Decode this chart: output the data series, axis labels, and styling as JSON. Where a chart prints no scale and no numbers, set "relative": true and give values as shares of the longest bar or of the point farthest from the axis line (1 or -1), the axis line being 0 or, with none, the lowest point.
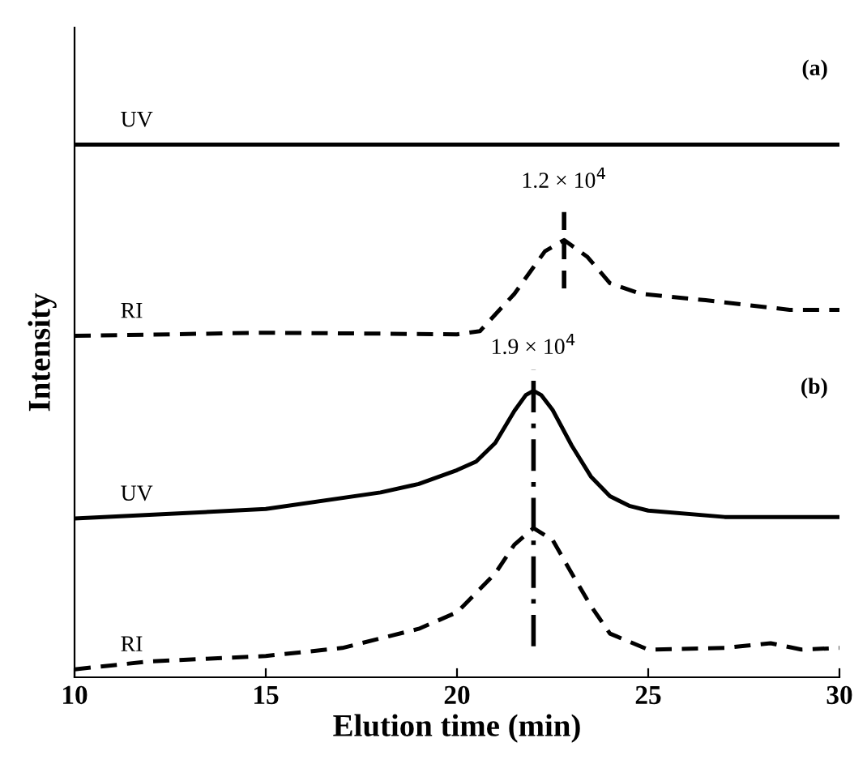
{
  "chart_data": {
    "type": "line",
    "relative": true,
    "xlabel": "Elution time (min)",
    "ylabel": "Intensity",
    "xlim": [
      10,
      30
    ],
    "xticks": [
      10,
      15,
      20,
      25,
      30
    ],
    "tick_labels": "x",
    "grid": false,
    "legend": false,
    "marker": "none",
    "series": [
      {
        "name": "UV",
        "color": "#000000",
        "line_style": "solid",
        "x": [
          10,
          30
        ],
        "values": [
          1,
          1
        ]
      },
      {
        "name": "RI",
        "color": "#000000",
        "line_style": "dashed",
        "x": [
          10,
          15,
          20,
          20.6,
          21.5,
          22.3,
          22.8,
          23.4,
          24,
          24.8,
          26.5,
          28.7,
          30
        ],
        "values": [
          0.641,
          0.647,
          0.644,
          0.65,
          0.72,
          0.8,
          0.821,
          0.79,
          0.74,
          0.72,
          0.708,
          0.69,
          0.69
        ]
      },
      {
        "name": "UV",
        "color": "#000000",
        "line_style": "solid",
        "x": [
          10,
          15,
          18,
          19,
          20,
          20.5,
          21,
          21.5,
          21.8,
          22,
          22.2,
          22.5,
          23,
          23.5,
          24,
          24.5,
          25,
          27,
          30
        ],
        "values": [
          0.298,
          0.316,
          0.347,
          0.363,
          0.389,
          0.405,
          0.44,
          0.5,
          0.53,
          0.538,
          0.53,
          0.502,
          0.435,
          0.377,
          0.34,
          0.322,
          0.313,
          0.301,
          0.301
        ]
      },
      {
        "name": "RI",
        "color": "#000000",
        "line_style": "dashed",
        "x": [
          10,
          12,
          15,
          17,
          19,
          20,
          21,
          21.5,
          22,
          22.5,
          23,
          23.5,
          24,
          25,
          27,
          28.2,
          29,
          30
        ],
        "values": [
          0.015,
          0.03,
          0.04,
          0.055,
          0.091,
          0.122,
          0.195,
          0.249,
          0.28,
          0.258,
          0.195,
          0.134,
          0.082,
          0.052,
          0.055,
          0.064,
          0.052,
          0.055
        ]
      }
    ],
    "ref_lines": [
      {
        "axis": "x",
        "value": 22.8,
        "label": "1.2 × 10$^{4}$",
        "line_style": "dashed",
        "color": "#000000"
      },
      {
        "axis": "x",
        "value": 22,
        "label": "1.9 × 10$^{4}$",
        "line_style": "dashdot",
        "color": "#000000"
      }
    ],
    "annotations": [
      "(a)",
      "(b)"
    ]
  }
}
